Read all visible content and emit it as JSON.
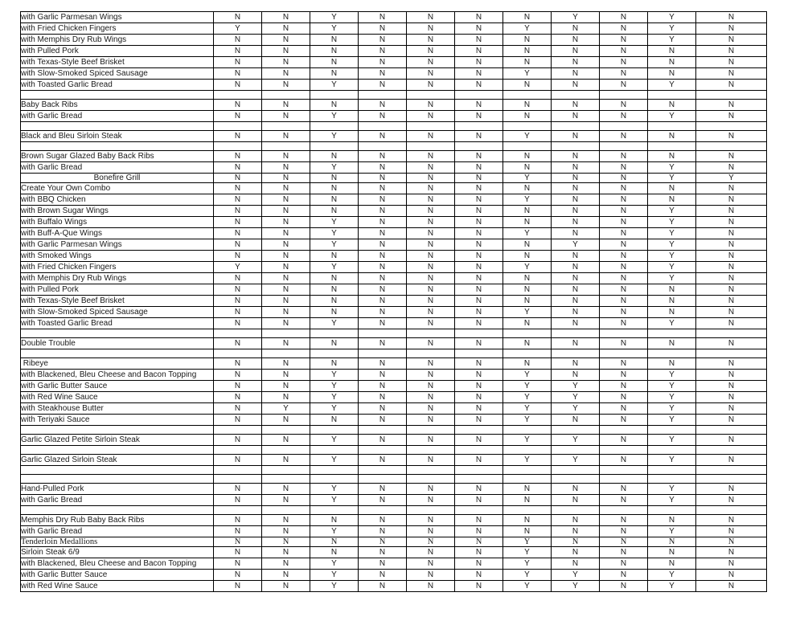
{
  "page": {
    "background_color": "#ffffff",
    "grid_color": "#000000",
    "description": "Printed allergen/ingredient matrix table with menu items and Y/N flags across 11 unlabeled columns"
  },
  "table": {
    "value_column_count": 11,
    "rows": [
      {
        "style": "normal",
        "name": "with Garlic Parmesan Wings",
        "values": [
          "N",
          "N",
          "Y",
          "N",
          "N",
          "N",
          "N",
          "Y",
          "N",
          "Y",
          "N"
        ]
      },
      {
        "style": "normal",
        "name": "with Fried Chicken Fingers",
        "values": [
          "Y",
          "N",
          "Y",
          "N",
          "N",
          "N",
          "Y",
          "N",
          "N",
          "Y",
          "N"
        ]
      },
      {
        "style": "normal",
        "name": "with Memphis Dry Rub Wings",
        "values": [
          "N",
          "N",
          "N",
          "N",
          "N",
          "N",
          "N",
          "N",
          "N",
          "Y",
          "N"
        ]
      },
      {
        "style": "normal",
        "name": "with Pulled Pork",
        "values": [
          "N",
          "N",
          "N",
          "N",
          "N",
          "N",
          "N",
          "N",
          "N",
          "N",
          "N"
        ]
      },
      {
        "style": "normal",
        "name": "with Texas-Style Beef Brisket",
        "values": [
          "N",
          "N",
          "N",
          "N",
          "N",
          "N",
          "N",
          "N",
          "N",
          "N",
          "N"
        ]
      },
      {
        "style": "normal",
        "name": "with Slow-Smoked Spiced Sausage",
        "values": [
          "N",
          "N",
          "N",
          "N",
          "N",
          "N",
          "Y",
          "N",
          "N",
          "N",
          "N"
        ]
      },
      {
        "style": "normal",
        "name": "with Toasted Garlic Bread",
        "values": [
          "N",
          "N",
          "Y",
          "N",
          "N",
          "N",
          "N",
          "N",
          "N",
          "Y",
          "N"
        ]
      },
      {
        "style": "blank",
        "name": "",
        "values": [
          "",
          "",
          "",
          "",
          "",
          "",
          "",
          "",
          "",
          "",
          ""
        ]
      },
      {
        "style": "normal",
        "name": "Baby Back Ribs",
        "values": [
          "N",
          "N",
          "N",
          "N",
          "N",
          "N",
          "N",
          "N",
          "N",
          "N",
          "N"
        ]
      },
      {
        "style": "normal",
        "name": "with Garlic Bread",
        "values": [
          "N",
          "N",
          "Y",
          "N",
          "N",
          "N",
          "N",
          "N",
          "N",
          "Y",
          "N"
        ]
      },
      {
        "style": "blank",
        "name": "",
        "values": [
          "",
          "",
          "",
          "",
          "",
          "",
          "",
          "",
          "",
          "",
          ""
        ]
      },
      {
        "style": "normal",
        "name": "Black and Bleu Sirloin Steak",
        "values": [
          "N",
          "N",
          "Y",
          "N",
          "N",
          "N",
          "Y",
          "N",
          "N",
          "N",
          "N"
        ]
      },
      {
        "style": "blank",
        "name": "",
        "values": [
          "",
          "",
          "",
          "",
          "",
          "",
          "",
          "",
          "",
          "",
          ""
        ]
      },
      {
        "style": "normal",
        "name": "Brown Sugar Glazed Baby Back Ribs",
        "values": [
          "N",
          "N",
          "N",
          "N",
          "N",
          "N",
          "N",
          "N",
          "N",
          "N",
          "N"
        ]
      },
      {
        "style": "normal",
        "name": "with Garlic Bread",
        "values": [
          "N",
          "N",
          "Y",
          "N",
          "N",
          "N",
          "N",
          "N",
          "N",
          "Y",
          "N"
        ]
      },
      {
        "style": "center",
        "name": "Bonefire Grill",
        "values": [
          "N",
          "N",
          "N",
          "N",
          "N",
          "N",
          "Y",
          "N",
          "N",
          "Y",
          "Y"
        ]
      },
      {
        "style": "normal",
        "name": "Create Your Own Combo",
        "values": [
          "N",
          "N",
          "N",
          "N",
          "N",
          "N",
          "N",
          "N",
          "N",
          "N",
          "N"
        ]
      },
      {
        "style": "normal",
        "name": "with BBQ Chicken",
        "values": [
          "N",
          "N",
          "N",
          "N",
          "N",
          "N",
          "Y",
          "N",
          "N",
          "N",
          "N"
        ]
      },
      {
        "style": "normal",
        "name": "with Brown Sugar Wings",
        "values": [
          "N",
          "N",
          "N",
          "N",
          "N",
          "N",
          "N",
          "N",
          "N",
          "Y",
          "N"
        ]
      },
      {
        "style": "normal",
        "name": "with Buffalo Wings",
        "values": [
          "N",
          "N",
          "Y",
          "N",
          "N",
          "N",
          "N",
          "N",
          "N",
          "Y",
          "N"
        ]
      },
      {
        "style": "normal",
        "name": "with Buff-A-Que Wings",
        "values": [
          "N",
          "N",
          "Y",
          "N",
          "N",
          "N",
          "Y",
          "N",
          "N",
          "Y",
          "N"
        ]
      },
      {
        "style": "normal",
        "name": "with Garlic Parmesan Wings",
        "values": [
          "N",
          "N",
          "Y",
          "N",
          "N",
          "N",
          "N",
          "Y",
          "N",
          "Y",
          "N"
        ]
      },
      {
        "style": "normal",
        "name": "with Smoked Wings",
        "values": [
          "N",
          "N",
          "N",
          "N",
          "N",
          "N",
          "N",
          "N",
          "N",
          "Y",
          "N"
        ]
      },
      {
        "style": "normal",
        "name": "with Fried Chicken Fingers",
        "values": [
          "Y",
          "N",
          "Y",
          "N",
          "N",
          "N",
          "Y",
          "N",
          "N",
          "Y",
          "N"
        ]
      },
      {
        "style": "normal",
        "name": "with Memphis Dry Rub Wings",
        "values": [
          "N",
          "N",
          "N",
          "N",
          "N",
          "N",
          "N",
          "N",
          "N",
          "Y",
          "N"
        ]
      },
      {
        "style": "normal",
        "name": "with Pulled Pork",
        "values": [
          "N",
          "N",
          "N",
          "N",
          "N",
          "N",
          "N",
          "N",
          "N",
          "N",
          "N"
        ]
      },
      {
        "style": "normal",
        "name": "with Texas-Style Beef Brisket",
        "values": [
          "N",
          "N",
          "N",
          "N",
          "N",
          "N",
          "N",
          "N",
          "N",
          "N",
          "N"
        ]
      },
      {
        "style": "normal",
        "name": "with Slow-Smoked Spiced Sausage",
        "values": [
          "N",
          "N",
          "N",
          "N",
          "N",
          "N",
          "Y",
          "N",
          "N",
          "N",
          "N"
        ]
      },
      {
        "style": "normal",
        "name": "with Toasted Garlic Bread",
        "values": [
          "N",
          "N",
          "Y",
          "N",
          "N",
          "N",
          "N",
          "N",
          "N",
          "Y",
          "N"
        ]
      },
      {
        "style": "blank",
        "name": "",
        "values": [
          "",
          "",
          "",
          "",
          "",
          "",
          "",
          "",
          "",
          "",
          ""
        ]
      },
      {
        "style": "normal",
        "name": "Double Trouble",
        "values": [
          "N",
          "N",
          "N",
          "N",
          "N",
          "N",
          "N",
          "N",
          "N",
          "N",
          "N"
        ]
      },
      {
        "style": "blank",
        "name": "",
        "values": [
          "",
          "",
          "",
          "",
          "",
          "",
          "",
          "",
          "",
          "",
          ""
        ]
      },
      {
        "style": "normal",
        "name": " Ribeye",
        "values": [
          "N",
          "N",
          "N",
          "N",
          "N",
          "N",
          "N",
          "N",
          "N",
          "N",
          "N"
        ]
      },
      {
        "style": "normal",
        "name": "with Blackened, Bleu Cheese and Bacon Topping",
        "values": [
          "N",
          "N",
          "Y",
          "N",
          "N",
          "N",
          "Y",
          "N",
          "N",
          "Y",
          "N"
        ]
      },
      {
        "style": "normal",
        "name": "with Garlic Butter Sauce",
        "values": [
          "N",
          "N",
          "Y",
          "N",
          "N",
          "N",
          "Y",
          "Y",
          "N",
          "Y",
          "N"
        ]
      },
      {
        "style": "normal",
        "name": "with Red Wine Sauce",
        "values": [
          "N",
          "N",
          "Y",
          "N",
          "N",
          "N",
          "Y",
          "Y",
          "N",
          "Y",
          "N"
        ]
      },
      {
        "style": "normal",
        "name": "with Steakhouse Butter",
        "values": [
          "N",
          "Y",
          "Y",
          "N",
          "N",
          "N",
          "Y",
          "Y",
          "N",
          "Y",
          "N"
        ]
      },
      {
        "style": "normal",
        "name": "with Teriyaki Sauce",
        "values": [
          "N",
          "N",
          "N",
          "N",
          "N",
          "N",
          "Y",
          "N",
          "N",
          "Y",
          "N"
        ]
      },
      {
        "style": "blank",
        "name": "",
        "values": [
          "",
          "",
          "",
          "",
          "",
          "",
          "",
          "",
          "",
          "",
          ""
        ]
      },
      {
        "style": "normal",
        "name": "Garlic Glazed Petite Sirloin Steak",
        "values": [
          "N",
          "N",
          "Y",
          "N",
          "N",
          "N",
          "Y",
          "Y",
          "N",
          "Y",
          "N"
        ]
      },
      {
        "style": "blank",
        "name": "",
        "values": [
          "",
          "",
          "",
          "",
          "",
          "",
          "",
          "",
          "",
          "",
          ""
        ]
      },
      {
        "style": "normal",
        "name": "Garlic Glazed Sirloin Steak",
        "values": [
          "N",
          "N",
          "Y",
          "N",
          "N",
          "N",
          "Y",
          "Y",
          "N",
          "Y",
          "N"
        ]
      },
      {
        "style": "blank",
        "name": "",
        "values": [
          "",
          "",
          "",
          "",
          "",
          "",
          "",
          "",
          "",
          "",
          ""
        ]
      },
      {
        "style": "blank",
        "name": "",
        "values": [
          "",
          "",
          "",
          "",
          "",
          "",
          "",
          "",
          "",
          "",
          ""
        ]
      },
      {
        "style": "normal",
        "name": "Hand-Pulled Pork",
        "values": [
          "N",
          "N",
          "Y",
          "N",
          "N",
          "N",
          "N",
          "N",
          "N",
          "Y",
          "N"
        ]
      },
      {
        "style": "normal",
        "name": "with Garlic Bread",
        "values": [
          "N",
          "N",
          "Y",
          "N",
          "N",
          "N",
          "N",
          "N",
          "N",
          "Y",
          "N"
        ]
      },
      {
        "style": "blank",
        "name": "",
        "values": [
          "",
          "",
          "",
          "",
          "",
          "",
          "",
          "",
          "",
          "",
          ""
        ]
      },
      {
        "style": "normal",
        "name": "Memphis Dry Rub Baby Back Ribs",
        "values": [
          "N",
          "N",
          "N",
          "N",
          "N",
          "N",
          "N",
          "N",
          "N",
          "N",
          "N"
        ]
      },
      {
        "style": "normal",
        "name": "with Garlic Bread",
        "values": [
          "N",
          "N",
          "Y",
          "N",
          "N",
          "N",
          "N",
          "N",
          "N",
          "Y",
          "N"
        ]
      },
      {
        "style": "serif",
        "name": "Tenderloin Medallions",
        "values": [
          "N",
          "N",
          "N",
          "N",
          "N",
          "N",
          "Y",
          "N",
          "N",
          "N",
          "N"
        ]
      },
      {
        "style": "normal",
        "name": "Sirloin Steak 6/9",
        "values": [
          "N",
          "N",
          "N",
          "N",
          "N",
          "N",
          "Y",
          "N",
          "N",
          "N",
          "N"
        ]
      },
      {
        "style": "normal",
        "name": "with Blackened, Bleu Cheese and Bacon Topping",
        "values": [
          "N",
          "N",
          "Y",
          "N",
          "N",
          "N",
          "Y",
          "N",
          "N",
          "N",
          "N"
        ]
      },
      {
        "style": "normal",
        "name": "with Garlic Butter Sauce",
        "values": [
          "N",
          "N",
          "Y",
          "N",
          "N",
          "N",
          "Y",
          "Y",
          "N",
          "Y",
          "N"
        ]
      },
      {
        "style": "normal",
        "name": "with Red Wine Sauce",
        "values": [
          "N",
          "N",
          "Y",
          "N",
          "N",
          "N",
          "Y",
          "Y",
          "N",
          "Y",
          "N"
        ]
      }
    ]
  }
}
